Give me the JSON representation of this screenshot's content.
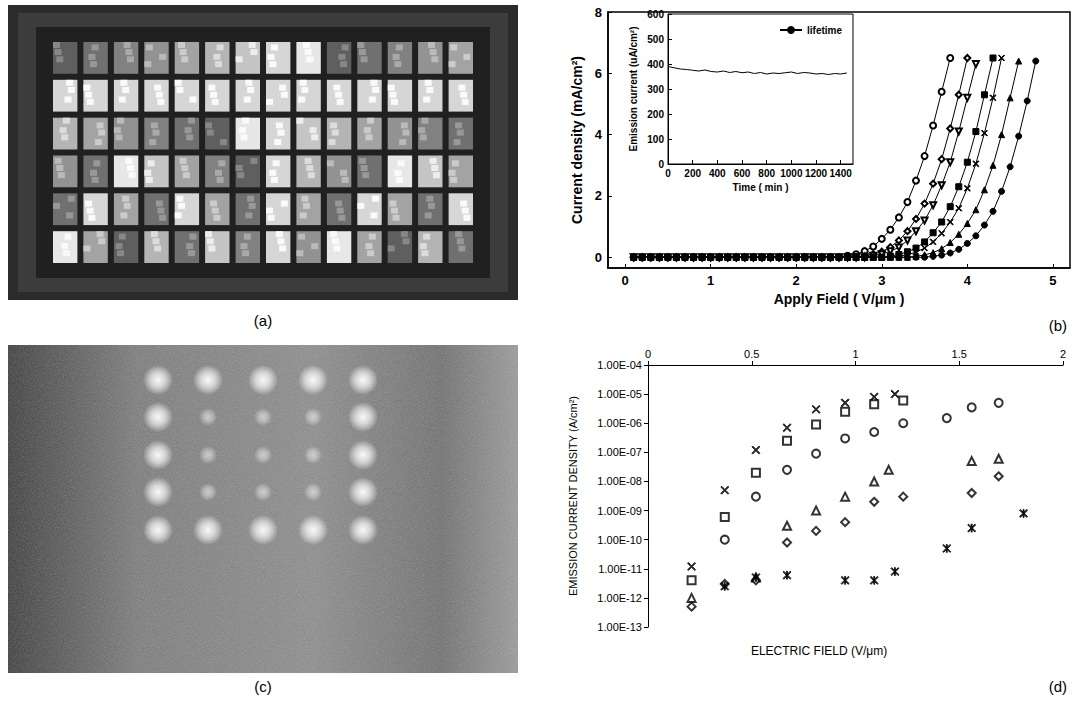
{
  "chart_data": [
    {
      "panel": "(a)",
      "type": "image"
    },
    {
      "panel": "(b)",
      "type": "line",
      "x_label": "Apply Field ( V/μm )",
      "y_label": "Current density (mA/cm²)",
      "xlim": [
        -0.2,
        5.2
      ],
      "xticks": [
        0,
        1,
        2,
        3,
        4,
        5
      ],
      "ylim": [
        -0.35,
        8
      ],
      "yticks": [
        0,
        2,
        4,
        6,
        8
      ],
      "grid": false,
      "x": [
        0.1,
        0.2,
        0.3,
        0.4,
        0.5,
        0.6,
        0.7,
        0.8,
        0.9,
        1.0,
        1.1,
        1.2,
        1.3,
        1.4,
        1.5,
        1.6,
        1.7,
        1.8,
        1.9,
        2.0,
        2.1,
        2.2,
        2.3,
        2.4,
        2.5,
        2.6,
        2.7,
        2.8,
        2.9,
        3.0,
        3.1,
        3.2,
        3.3,
        3.4,
        3.5,
        3.6,
        3.7,
        3.8,
        3.9,
        4.0,
        4.1,
        4.2,
        4.3,
        4.4,
        4.5,
        4.6,
        4.7,
        4.8
      ],
      "series": [
        {
          "marker": "circle-open",
          "color": "#000000",
          "values": [
            0,
            0,
            0,
            0,
            0,
            0,
            0,
            0,
            0,
            0,
            0,
            0,
            0,
            0,
            0,
            0,
            0,
            0,
            0,
            0,
            0,
            0,
            0,
            0,
            0,
            0.05,
            0.1,
            0.2,
            0.35,
            0.6,
            0.9,
            1.3,
            1.8,
            2.5,
            3.3,
            4.3,
            5.4,
            6.5,
            null,
            null,
            null,
            null,
            null,
            null,
            null,
            null,
            null,
            null
          ]
        },
        {
          "marker": "diamond-open",
          "color": "#000000",
          "values": [
            0,
            0,
            0,
            0,
            0,
            0,
            0,
            0,
            0,
            0,
            0,
            0,
            0,
            0,
            0,
            0,
            0,
            0,
            0,
            0,
            0,
            0,
            0,
            0,
            0,
            0,
            0,
            0.04,
            0.1,
            0.18,
            0.33,
            0.55,
            0.85,
            1.25,
            1.75,
            2.4,
            3.2,
            4.2,
            5.3,
            6.5,
            null,
            null,
            null,
            null,
            null,
            null,
            null,
            null
          ]
        },
        {
          "marker": "triangle-down-open",
          "color": "#000000",
          "values": [
            0,
            0,
            0,
            0,
            0,
            0,
            0,
            0,
            0,
            0,
            0,
            0,
            0,
            0,
            0,
            0,
            0,
            0,
            0,
            0,
            0,
            0,
            0,
            0,
            0,
            0,
            0,
            0,
            0.05,
            0.1,
            0.2,
            0.32,
            0.55,
            0.85,
            1.2,
            1.7,
            2.35,
            3.1,
            4.1,
            5.2,
            6.3,
            null,
            null,
            null,
            null,
            null,
            null,
            null
          ]
        },
        {
          "marker": "square",
          "color": "#000000",
          "values": [
            0,
            0,
            0,
            0,
            0,
            0,
            0,
            0,
            0,
            0,
            0,
            0,
            0,
            0,
            0,
            0,
            0,
            0,
            0,
            0,
            0,
            0,
            0,
            0,
            0,
            0,
            0,
            0,
            0,
            0,
            0.04,
            0.09,
            0.18,
            0.3,
            0.5,
            0.8,
            1.15,
            1.65,
            2.3,
            3.1,
            4.1,
            5.3,
            6.5,
            null,
            null,
            null,
            null,
            null
          ]
        },
        {
          "marker": "x",
          "color": "#000000",
          "values": [
            0,
            0,
            0,
            0,
            0,
            0,
            0,
            0,
            0,
            0,
            0,
            0,
            0,
            0,
            0,
            0,
            0,
            0,
            0,
            0,
            0,
            0,
            0,
            0,
            0,
            0,
            0,
            0,
            0,
            0,
            0,
            0.04,
            0.08,
            0.17,
            0.3,
            0.5,
            0.78,
            1.15,
            1.6,
            2.25,
            3.05,
            4.05,
            5.2,
            6.5,
            null,
            null,
            null,
            null
          ]
        },
        {
          "marker": "triangle",
          "color": "#000000",
          "values": [
            0,
            0,
            0,
            0,
            0,
            0,
            0,
            0,
            0,
            0,
            0,
            0,
            0,
            0,
            0,
            0,
            0,
            0,
            0,
            0,
            0,
            0,
            0,
            0,
            0,
            0,
            0,
            0,
            0,
            0,
            0,
            0,
            0,
            0.03,
            0.08,
            0.15,
            0.28,
            0.48,
            0.75,
            1.1,
            1.55,
            2.2,
            3.0,
            4.0,
            5.2,
            6.4,
            null,
            null
          ]
        },
        {
          "marker": "circle",
          "color": "#000000",
          "values": [
            0,
            0,
            0,
            0,
            0,
            0,
            0,
            0,
            0,
            0,
            0,
            0,
            0,
            0,
            0,
            0,
            0,
            0,
            0,
            0,
            0,
            0,
            0,
            0,
            0,
            0,
            0,
            0,
            0,
            0,
            0,
            0,
            0,
            0,
            0,
            0.03,
            0.07,
            0.14,
            0.26,
            0.45,
            0.7,
            1.05,
            1.5,
            2.15,
            2.95,
            3.95,
            5.1,
            6.4
          ]
        }
      ],
      "inset": {
        "type": "line",
        "x_label": "Time ( min )",
        "y_label": "Emission current (uA/cm²)",
        "xlim": [
          0,
          1500
        ],
        "xticks": [
          0,
          200,
          400,
          600,
          800,
          1000,
          1200,
          1400
        ],
        "ylim": [
          0,
          600
        ],
        "yticks": [
          0,
          100,
          200,
          300,
          400,
          500,
          600
        ],
        "grid": false,
        "legend": "upper right",
        "x": [
          0,
          50,
          100,
          150,
          200,
          250,
          300,
          350,
          400,
          450,
          500,
          550,
          600,
          650,
          700,
          750,
          800,
          850,
          900,
          950,
          1000,
          1050,
          1100,
          1150,
          1200,
          1250,
          1300,
          1350,
          1400,
          1450
        ],
        "series": [
          {
            "name": "lifetime",
            "color": "#000000",
            "marker": "none",
            "values": [
              390,
              385,
              380,
              378,
              375,
              372,
              376,
              370,
              368,
              372,
              366,
              370,
              365,
              368,
              362,
              366,
              360,
              364,
              362,
              365,
              368,
              362,
              366,
              364,
              360,
              362,
              358,
              362,
              360,
              364
            ]
          }
        ]
      }
    },
    {
      "panel": "(c)",
      "type": "image"
    },
    {
      "panel": "(d)",
      "type": "scatter",
      "x_label": "ELECTRIC FIELD (V/μm)",
      "y_label": "EMISSION CURRENT DENSITY (A/cm²)",
      "log": "y",
      "xlim": [
        0,
        2
      ],
      "xticks": [
        0,
        0.5,
        1,
        1.5,
        2
      ],
      "ylim": [
        1e-13,
        0.0001
      ],
      "yticks": [
        {
          "value": 1e-13,
          "label": "1.00E-13"
        },
        {
          "value": 1e-12,
          "label": "1.00E-12"
        },
        {
          "value": 1e-11,
          "label": "1.00E-11"
        },
        {
          "value": 1e-10,
          "label": "1.00E-10"
        },
        {
          "value": 1e-09,
          "label": "1.00E-09"
        },
        {
          "value": 1e-08,
          "label": "1.00E-08"
        },
        {
          "value": 1e-07,
          "label": "1.00E-07"
        },
        {
          "value": 1e-06,
          "label": "1.00E-06"
        },
        {
          "value": 1e-05,
          "label": "1.00E-05"
        },
        {
          "value": 0.0001,
          "label": "1.00E-04"
        }
      ],
      "grid": false,
      "series": [
        {
          "marker": "x",
          "color": "#000000",
          "x": [
            0.21,
            0.37,
            0.52,
            0.67,
            0.81,
            0.95,
            1.09,
            1.19
          ],
          "values": [
            1.2e-11,
            5e-09,
            1.2e-07,
            7e-07,
            3e-06,
            5e-06,
            8e-06,
            1e-05
          ]
        },
        {
          "marker": "square-open",
          "color": "#000000",
          "x": [
            0.21,
            0.37,
            0.52,
            0.67,
            0.81,
            0.95,
            1.09,
            1.23
          ],
          "values": [
            4e-12,
            6e-10,
            2e-08,
            2.5e-07,
            9e-07,
            2.5e-06,
            4.5e-06,
            6e-06
          ]
        },
        {
          "marker": "circle-open",
          "color": "#000000",
          "x": [
            0.37,
            0.52,
            0.67,
            0.81,
            0.95,
            1.09,
            1.23,
            1.44,
            1.56,
            1.69
          ],
          "values": [
            1e-10,
            3e-09,
            2.5e-08,
            9e-08,
            3e-07,
            5e-07,
            1e-06,
            1.5e-06,
            3.5e-06,
            5e-06
          ]
        },
        {
          "marker": "triangle-open",
          "color": "#000000",
          "x": [
            0.21,
            0.52,
            0.67,
            0.81,
            0.95,
            1.09,
            1.16,
            1.56,
            1.69
          ],
          "values": [
            1e-12,
            5e-12,
            3e-10,
            1e-09,
            3e-09,
            1e-08,
            2.5e-08,
            5e-08,
            6e-08
          ]
        },
        {
          "marker": "diamond-open",
          "color": "#000000",
          "x": [
            0.21,
            0.37,
            0.52,
            0.67,
            0.81,
            0.95,
            1.09,
            1.23,
            1.56,
            1.69
          ],
          "values": [
            5e-13,
            3e-12,
            4e-12,
            8e-11,
            2e-10,
            4e-10,
            2e-09,
            3e-09,
            4e-09,
            1.5e-08
          ]
        },
        {
          "marker": "asterisk",
          "color": "#000000",
          "x": [
            0.37,
            0.52,
            0.67,
            0.95,
            1.09,
            1.19,
            1.44,
            1.56,
            1.81
          ],
          "values": [
            2.5e-12,
            5e-12,
            6e-12,
            4e-12,
            4e-12,
            8e-12,
            5e-11,
            2.5e-10,
            8e-10
          ]
        }
      ]
    }
  ]
}
